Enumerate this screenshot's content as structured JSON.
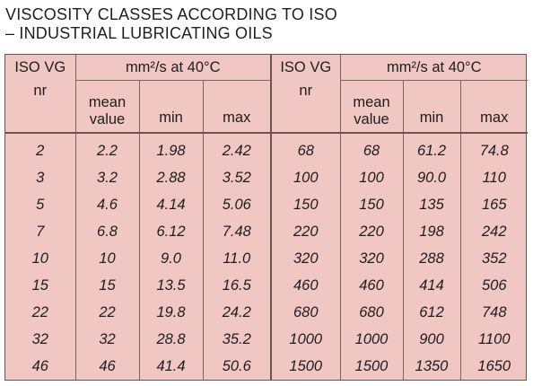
{
  "title": {
    "line1": "VISCOSITY CLASSES ACCORDING TO ISO",
    "line2": "– INDUSTRIAL LUBRICATING OILS"
  },
  "header": {
    "iso_vg": "ISO VG",
    "nr": "nr",
    "group": "mm²/s at 40°C",
    "mean_line1": "mean",
    "mean_line2": "value",
    "min": "min",
    "max": "max"
  },
  "rows": [
    {
      "l_nr": "2",
      "l_mean": "2.2",
      "l_min": "1.98",
      "l_max": "2.42",
      "r_nr": "68",
      "r_mean": "68",
      "r_min": "61.2",
      "r_max": "74.8"
    },
    {
      "l_nr": "3",
      "l_mean": "3.2",
      "l_min": "2.88",
      "l_max": "3.52",
      "r_nr": "100",
      "r_mean": "100",
      "r_min": "90.0",
      "r_max": "110"
    },
    {
      "l_nr": "5",
      "l_mean": "4.6",
      "l_min": "4.14",
      "l_max": "5.06",
      "r_nr": "150",
      "r_mean": "150",
      "r_min": "135",
      "r_max": "165"
    },
    {
      "l_nr": "7",
      "l_mean": "6.8",
      "l_min": "6.12",
      "l_max": "7.48",
      "r_nr": "220",
      "r_mean": "220",
      "r_min": "198",
      "r_max": "242"
    },
    {
      "l_nr": "10",
      "l_mean": "10",
      "l_min": "9.0",
      "l_max": "11.0",
      "r_nr": "320",
      "r_mean": "320",
      "r_min": "288",
      "r_max": "352"
    },
    {
      "l_nr": "15",
      "l_mean": "15",
      "l_min": "13.5",
      "l_max": "16.5",
      "r_nr": "460",
      "r_mean": "460",
      "r_min": "414",
      "r_max": "506"
    },
    {
      "l_nr": "22",
      "l_mean": "22",
      "l_min": "19.8",
      "l_max": "24.2",
      "r_nr": "680",
      "r_mean": "680",
      "r_min": "612",
      "r_max": "748"
    },
    {
      "l_nr": "32",
      "l_mean": "32",
      "l_min": "28.8",
      "l_max": "35.2",
      "r_nr": "1000",
      "r_mean": "1000",
      "r_min": "900",
      "r_max": "1100"
    },
    {
      "l_nr": "46",
      "l_mean": "46",
      "l_min": "41.4",
      "l_max": "50.6",
      "r_nr": "1500",
      "r_mean": "1500",
      "r_min": "1350",
      "r_max": "1650"
    }
  ],
  "colors": {
    "table_background": "#f0c7c3",
    "rule": "#6a5552",
    "text": "#1d1d1f"
  }
}
